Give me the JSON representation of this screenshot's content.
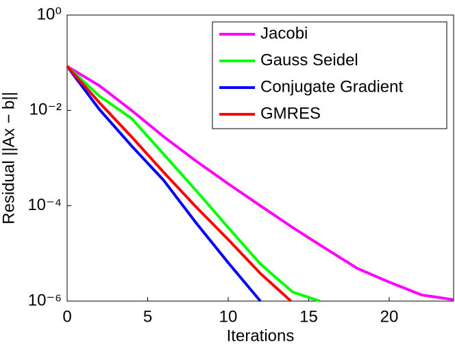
{
  "chart_data": {
    "type": "line",
    "xlabel": "Iterations",
    "ylabel": "Residual    ||Ax − b||",
    "xlim": [
      0,
      24
    ],
    "xticks": [
      0,
      5,
      10,
      15,
      20
    ],
    "ylim": [
      1e-06,
      1
    ],
    "log_y": true,
    "yticks": [
      {
        "value": 1e-06,
        "label": "10⁻⁶"
      },
      {
        "value": 0.0001,
        "label": "10⁻⁴"
      },
      {
        "value": 0.01,
        "label": "10⁻²"
      },
      {
        "value": 1,
        "label": "10⁰"
      }
    ],
    "grid": false,
    "legend": "upper right",
    "series": [
      {
        "name": "Jacobi",
        "color": "#ff00ff",
        "x": [
          0,
          2,
          4,
          6,
          8,
          10,
          12,
          14,
          16,
          18,
          20,
          22,
          24
        ],
        "values": [
          0.084,
          0.033,
          0.01,
          0.0028,
          0.00087,
          0.00029,
          0.0001,
          3.5e-05,
          1.3e-05,
          4.9e-06,
          2.5e-06,
          1.35e-06,
          1.07e-06
        ]
      },
      {
        "name": "Gauss Seidel",
        "color": "#00ff00",
        "x": [
          0,
          2,
          4,
          6,
          8,
          10,
          12,
          14,
          15.7
        ],
        "values": [
          0.084,
          0.02,
          0.0068,
          0.0012,
          0.00021,
          3.5e-05,
          6e-06,
          1.55e-06,
          1e-06
        ]
      },
      {
        "name": "Conjugate Gradient",
        "color": "#0000ff",
        "x": [
          0,
          2,
          4,
          6,
          8,
          10,
          12
        ],
        "values": [
          0.084,
          0.0105,
          0.0018,
          0.00034,
          4.4e-05,
          6.4e-06,
          1e-06
        ]
      },
      {
        "name": "GMRES",
        "color": "#ff0000",
        "x": [
          0,
          2,
          4,
          6,
          8,
          10,
          12,
          13.9
        ],
        "values": [
          0.084,
          0.0146,
          0.0028,
          0.0005,
          9.5e-05,
          1.96e-05,
          3.8e-06,
          1e-06
        ]
      }
    ]
  }
}
